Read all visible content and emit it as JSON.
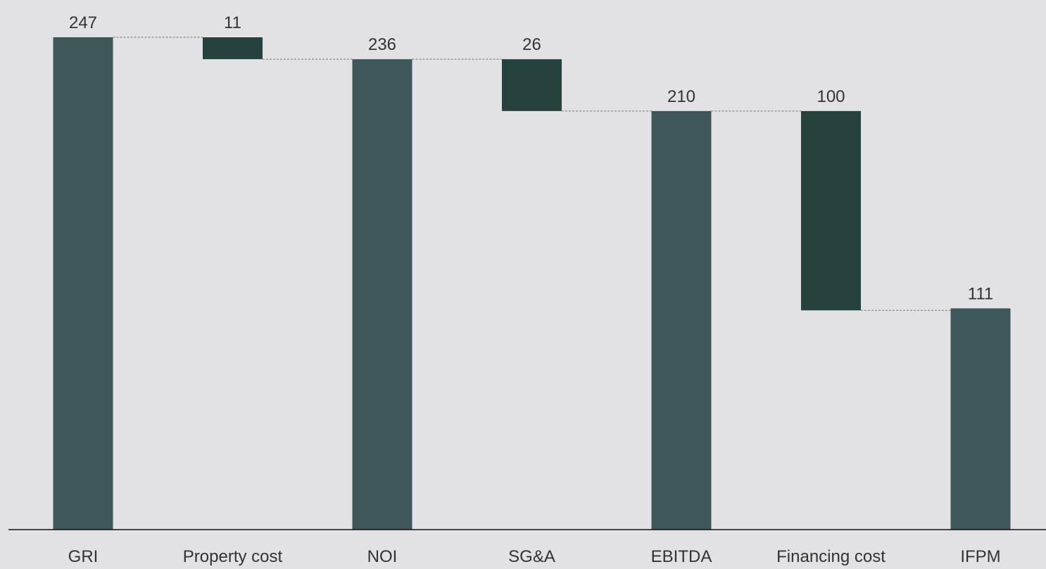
{
  "chart_data": {
    "type": "waterfall",
    "categories": [
      "GRI",
      "Property cost",
      "NOI",
      "SG&A",
      "EBITDA",
      "Financing cost",
      "IFPM"
    ],
    "values": [
      247,
      11,
      236,
      26,
      210,
      100,
      111
    ],
    "measures": [
      "total",
      "decrease",
      "total",
      "decrease",
      "total",
      "decrease",
      "total"
    ],
    "total_color": "#3f5759",
    "decrease_color": "#26423f"
  }
}
